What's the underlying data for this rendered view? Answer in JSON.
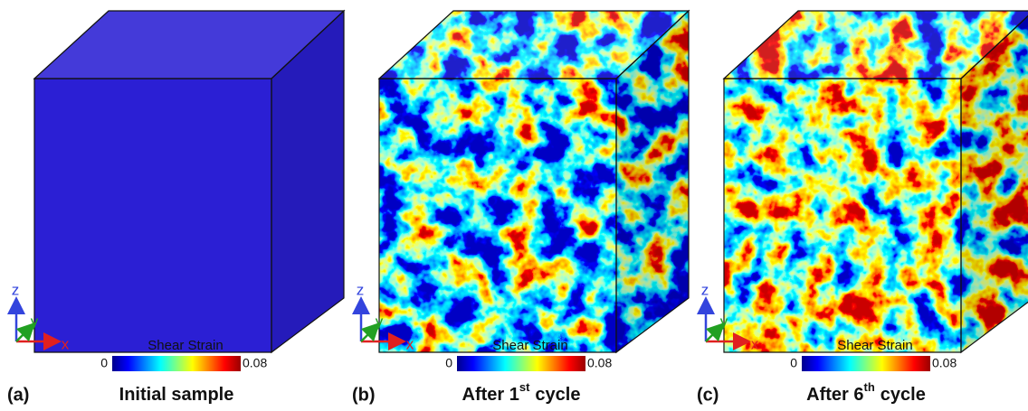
{
  "panels": [
    {
      "label": "(a)",
      "caption": [
        {
          "text": "Initial sample"
        }
      ],
      "axes": {
        "z": "z",
        "y": "y",
        "x": "x"
      },
      "colorbar": {
        "title": "Shear Strain",
        "min": "0",
        "max": "0.08"
      }
    },
    {
      "label": "(b)",
      "caption": [
        {
          "text": "After 1"
        },
        {
          "text": "st",
          "sup": true
        },
        {
          "text": "cycle"
        }
      ],
      "axes": {
        "z": "z",
        "y": "y",
        "x": "x"
      },
      "colorbar": {
        "title": "Shear Strain",
        "min": "0",
        "max": "0.08"
      }
    },
    {
      "label": "(c)",
      "caption": [
        {
          "text": "After 6"
        },
        {
          "text": "th",
          "sup": true
        },
        {
          "text": "cycle"
        }
      ],
      "axes": {
        "z": "z",
        "y": "y",
        "x": "x"
      },
      "colorbar": {
        "title": "Shear Strain",
        "min": "0",
        "max": "0.08"
      }
    }
  ]
}
